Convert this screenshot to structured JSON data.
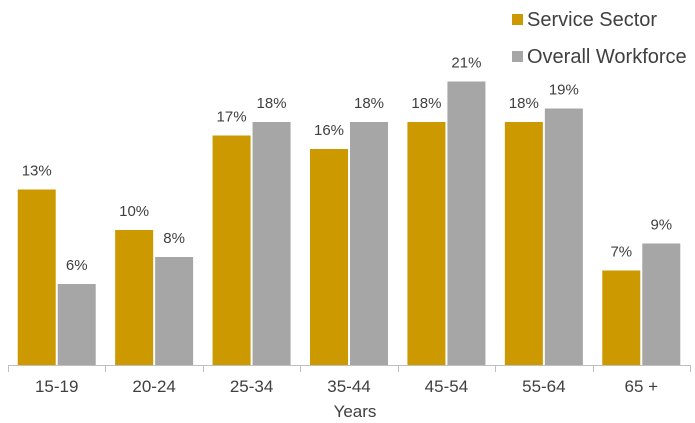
{
  "chart_data": {
    "type": "bar",
    "xlabel": "Years",
    "ylabel": "",
    "ylim": [
      0,
      22.5
    ],
    "grid": false,
    "legend_position": "top-right",
    "categories": [
      "15-19",
      "20-24",
      "25-34",
      "35-44",
      "45-54",
      "55-64",
      "65 +"
    ],
    "series": [
      {
        "name": "Service Sector",
        "color": "#CC9900",
        "values": [
          13,
          10,
          17,
          16,
          18,
          18,
          7
        ],
        "labels": [
          "13%",
          "10%",
          "17%",
          "16%",
          "18%",
          "18%",
          "7%"
        ]
      },
      {
        "name": "Overall Workforce",
        "color": "#A6A6A6",
        "values": [
          6,
          8,
          18,
          18,
          21,
          19,
          9
        ],
        "labels": [
          "6%",
          "8%",
          "18%",
          "18%",
          "21%",
          "19%",
          "9%"
        ]
      }
    ]
  }
}
